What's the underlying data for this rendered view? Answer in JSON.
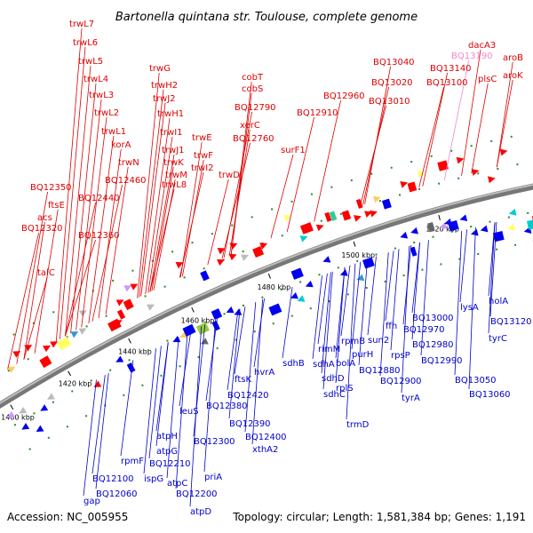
{
  "title": "Bartonella quintana str. Toulouse, complete genome",
  "accession": "Accession: NC_005955",
  "summary": "Topology: circular; Length: 1,581,384 bp; Genes: 1,191",
  "colors": {
    "forward_label": "#dd0000",
    "reverse_label": "#0000cc",
    "pink_label": "#ee88cc",
    "backbone": "#8c8c8c"
  },
  "ticks": [
    "1400 kbp",
    "1420 kbp",
    "1440 kbp",
    "1460 kbp",
    "1480 kbp",
    "1500 kbp",
    "1520 kbp"
  ],
  "forward_labels": [
    "trwL7",
    "trwL6",
    "trwL5",
    "trwL4",
    "trwL3",
    "trwL2",
    "trwL1",
    "korA",
    "trwN",
    "BQ12460",
    "BQ12350",
    "ftsE",
    "acs",
    "BQ12320",
    "BQ12440",
    "BQ12360",
    "talC",
    "trwG",
    "trwH2",
    "trwJ2",
    "trwH1",
    "trwI1",
    "trwJ1",
    "trwK",
    "trwM",
    "trwL8",
    "trwE",
    "trwF",
    "trwI2",
    "trwD",
    "cobT",
    "cobS",
    "BQ12790",
    "xerC",
    "BQ12760",
    "surF1",
    "BQ12960",
    "BQ12910",
    "BQ13040",
    "BQ13020",
    "BQ13010",
    "BQ13140",
    "BQ13100",
    "dacA3",
    "plsC",
    "aroB",
    "aroK"
  ],
  "pink_labels": [
    "BQ13190"
  ],
  "reverse_labels": [
    "gap",
    "BQ12060",
    "BQ12100",
    "rpmF",
    "ispG",
    "BQ12210",
    "atpG",
    "atpH",
    "BQ12300",
    "atpC",
    "BQ12200",
    "atpD",
    "priA",
    "leuS",
    "BQ12380",
    "BQ12390",
    "BQ12420",
    "ftsK",
    "BQ12400",
    "xthA2",
    "hvrA",
    "sdhB",
    "sdhA",
    "sdhD",
    "sdhC",
    "rimM",
    "bolA",
    "rpmB",
    "purH",
    "rplS",
    "trmD",
    "sun2",
    "BQ12880",
    "ffh",
    "rpsP",
    "BQ12900",
    "tyrA",
    "BQ13000",
    "BQ12970",
    "BQ12980",
    "BQ12990",
    "lysA",
    "BQ13050",
    "BQ13060",
    "holA",
    "BQ13120",
    "tyrC"
  ]
}
